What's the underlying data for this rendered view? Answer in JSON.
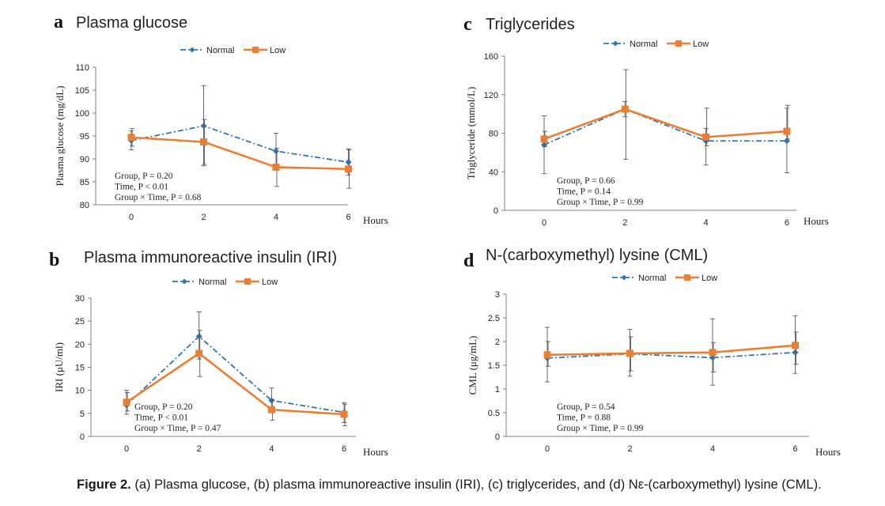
{
  "colors": {
    "normal": "#2e75b6",
    "low": "#ed7d31",
    "axis": "#7f7f7f",
    "error": "#595959"
  },
  "caption": {
    "lead": "Figure 2.",
    "text": " (a) Plasma glucose, (b) plasma immunoreactive insulin (IRI), (c) triglycerides, and (d) Nε-(carboxymethyl) lysine (CML)."
  },
  "chart_data": [
    {
      "type": "line",
      "panel": "a",
      "title": "Plasma glucose",
      "ylabel": "Plasma glucose (mg/dL)",
      "xlabel": "Hours",
      "x": [
        0,
        2,
        4,
        6
      ],
      "yticks": [
        80,
        85,
        90,
        95,
        100,
        105,
        110
      ],
      "ylim": [
        80,
        110
      ],
      "legend_position": "top-center",
      "series": [
        {
          "name": "Normal",
          "style": "dash-dot",
          "values": [
            94.0,
            97.2,
            91.7,
            89.3
          ],
          "err_low": [
            92.0,
            88.5,
            87.8,
            86.5
          ],
          "err_high": [
            96.1,
            106.0,
            95.6,
            92.2
          ]
        },
        {
          "name": "Low",
          "style": "solid",
          "values": [
            94.7,
            93.7,
            88.2,
            87.8
          ],
          "err_low": [
            92.8,
            88.8,
            84.0,
            83.6
          ],
          "err_high": [
            96.6,
            98.6,
            92.3,
            92.0
          ]
        }
      ],
      "stats": [
        "Group, P = 0.20",
        "Time,   P < 0.01",
        "Group × Time, P = 0.68"
      ]
    },
    {
      "type": "line",
      "panel": "b",
      "title": "Plasma immunoreactive insulin (IRI)",
      "ylabel": "IRI (μU/ml)",
      "xlabel": "Hours",
      "x": [
        0,
        2,
        4,
        6
      ],
      "yticks": [
        0,
        5,
        10,
        15,
        20,
        25,
        30
      ],
      "ylim": [
        0,
        30
      ],
      "legend_position": "top-center",
      "series": [
        {
          "name": "Normal",
          "style": "dash-dot",
          "values": [
            6.8,
            21.7,
            7.8,
            5.2
          ],
          "err_low": [
            4.8,
            16.8,
            5.3,
            3.0
          ],
          "err_high": [
            10.0,
            27.0,
            10.5,
            7.3
          ]
        },
        {
          "name": "Low",
          "style": "solid",
          "values": [
            7.4,
            18.0,
            5.8,
            4.8
          ],
          "err_low": [
            5.5,
            13.0,
            3.5,
            2.3
          ],
          "err_high": [
            9.5,
            23.0,
            8.0,
            7.0
          ]
        }
      ],
      "stats": [
        "Group, P = 0.20",
        "Time,   P < 0.01",
        "Group × Time, P = 0.47"
      ]
    },
    {
      "type": "line",
      "panel": "c",
      "title": "Triglycerides",
      "ylabel": "Triglyceride (mmol/L)",
      "xlabel": "Hours",
      "x": [
        0,
        2,
        4,
        6
      ],
      "yticks": [
        0,
        40,
        80,
        120,
        160
      ],
      "ylim": [
        0,
        160
      ],
      "legend_position": "top-center",
      "series": [
        {
          "name": "Normal",
          "style": "dash-dot",
          "values": [
            68,
            105,
            72,
            72
          ],
          "err_low": [
            38,
            97,
            47,
            39
          ],
          "err_high": [
            98,
            113,
            85,
            106
          ]
        },
        {
          "name": "Low",
          "style": "solid",
          "values": [
            74,
            105,
            76,
            82
          ],
          "err_low": [
            66,
            53,
            67,
            74
          ],
          "err_high": [
            82,
            146,
            106,
            109
          ]
        }
      ],
      "stats": [
        "Group, P = 0.66",
        "Time,   P = 0.14",
        "Group × Time, P = 0.99"
      ]
    },
    {
      "type": "line",
      "panel": "d",
      "title": "N-(carboxymethyl) lysine (CML)",
      "ylabel": "CML (μg/mL)",
      "xlabel": "Hours",
      "x": [
        0,
        2,
        4,
        6
      ],
      "yticks": [
        0,
        0.5,
        1,
        1.5,
        2,
        2.5,
        3
      ],
      "ylim": [
        0,
        3
      ],
      "legend_position": "top-center",
      "series": [
        {
          "name": "Normal",
          "style": "dash-dot",
          "values": [
            1.65,
            1.74,
            1.66,
            1.77
          ],
          "err_low": [
            1.15,
            1.27,
            1.08,
            1.33
          ],
          "err_high": [
            2.3,
            2.26,
            2.48,
            2.54
          ]
        },
        {
          "name": "Low",
          "style": "solid",
          "values": [
            1.72,
            1.75,
            1.77,
            1.92
          ],
          "err_low": [
            1.48,
            1.38,
            1.36,
            1.52
          ],
          "err_high": [
            2.0,
            2.1,
            1.98,
            2.2
          ]
        }
      ],
      "stats": [
        "Group, P = 0.54",
        "Time,   P = 0.88",
        "Group × Time, P = 0.99"
      ]
    }
  ]
}
